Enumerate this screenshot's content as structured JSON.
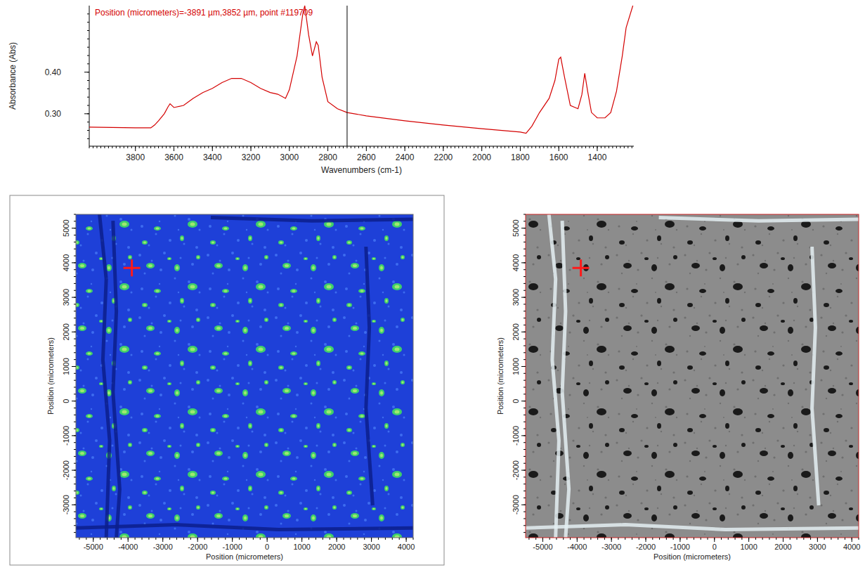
{
  "chart_data": [
    {
      "type": "line",
      "title": "Position (micrometers)=-3891 µm,3852 µm, point #119709",
      "x_label": "Wavenumbers (cm-1)",
      "y_label": "Absorbance (Abs)",
      "color": "#d40000",
      "x": [
        4040,
        3800,
        3720,
        3700,
        3680,
        3650,
        3630,
        3620,
        3600,
        3550,
        3500,
        3450,
        3400,
        3350,
        3300,
        3250,
        3200,
        3150,
        3100,
        3060,
        3020,
        3000,
        2960,
        2930,
        2920,
        2900,
        2880,
        2860,
        2850,
        2830,
        2800,
        2750,
        2700,
        2600,
        2400,
        2200,
        2000,
        1800,
        1770,
        1740,
        1700,
        1650,
        1620,
        1600,
        1590,
        1570,
        1540,
        1500,
        1480,
        1465,
        1450,
        1430,
        1400,
        1360,
        1330,
        1300,
        1270,
        1250,
        1215
      ],
      "values": [
        0.268,
        0.266,
        0.266,
        0.273,
        0.283,
        0.3,
        0.317,
        0.324,
        0.315,
        0.32,
        0.337,
        0.351,
        0.361,
        0.375,
        0.385,
        0.385,
        0.375,
        0.361,
        0.351,
        0.347,
        0.337,
        0.358,
        0.439,
        0.541,
        0.56,
        0.49,
        0.439,
        0.473,
        0.464,
        0.388,
        0.329,
        0.312,
        0.303,
        0.295,
        0.283,
        0.273,
        0.264,
        0.256,
        0.253,
        0.27,
        0.303,
        0.337,
        0.38,
        0.431,
        0.436,
        0.388,
        0.32,
        0.312,
        0.346,
        0.397,
        0.354,
        0.303,
        0.29,
        0.29,
        0.303,
        0.354,
        0.439,
        0.507,
        0.56
      ],
      "xlim": [
        4040,
        1210
      ],
      "xticks": [
        3800,
        3600,
        3400,
        3200,
        3000,
        2800,
        2600,
        2400,
        2200,
        2000,
        1800,
        1600,
        1400
      ],
      "ylim": [
        0.222,
        0.56
      ],
      "yticks": [
        {
          "value": 0.3,
          "label": "0.30"
        },
        {
          "value": 0.4,
          "label": "0.40"
        }
      ],
      "cursor": 2700
    },
    {
      "type": "heatmap",
      "x_label": "Position (micrometers)",
      "y_label": "Position (micrometers)",
      "color": "#1e40d8",
      "xlim": [
        -5500,
        4200
      ],
      "xticks": [
        -5000,
        -4000,
        -3000,
        -2000,
        -1000,
        0,
        1000,
        2000,
        3000,
        4000
      ],
      "ylim": [
        -3950,
        5400
      ],
      "yticks": [
        -3000,
        -2000,
        -1000,
        0,
        1000,
        2000,
        3000,
        4000,
        5000
      ],
      "point": {
        "x": -3891,
        "y": 3852
      }
    },
    {
      "type": "image",
      "x_label": "Position (micrometers)",
      "y_label": "Position (micrometers)",
      "color": "#8c8c8c",
      "xlim": [
        -5500,
        4200
      ],
      "xticks": [
        -5000,
        -4000,
        -3000,
        -2000,
        -1000,
        0,
        1000,
        2000,
        3000,
        4000
      ],
      "ylim": [
        -3950,
        5400
      ],
      "yticks": [
        -3000,
        -2000,
        -1000,
        0,
        1000,
        2000,
        3000,
        4000,
        5000
      ],
      "point": {
        "x": -3891,
        "y": 3852
      }
    }
  ]
}
